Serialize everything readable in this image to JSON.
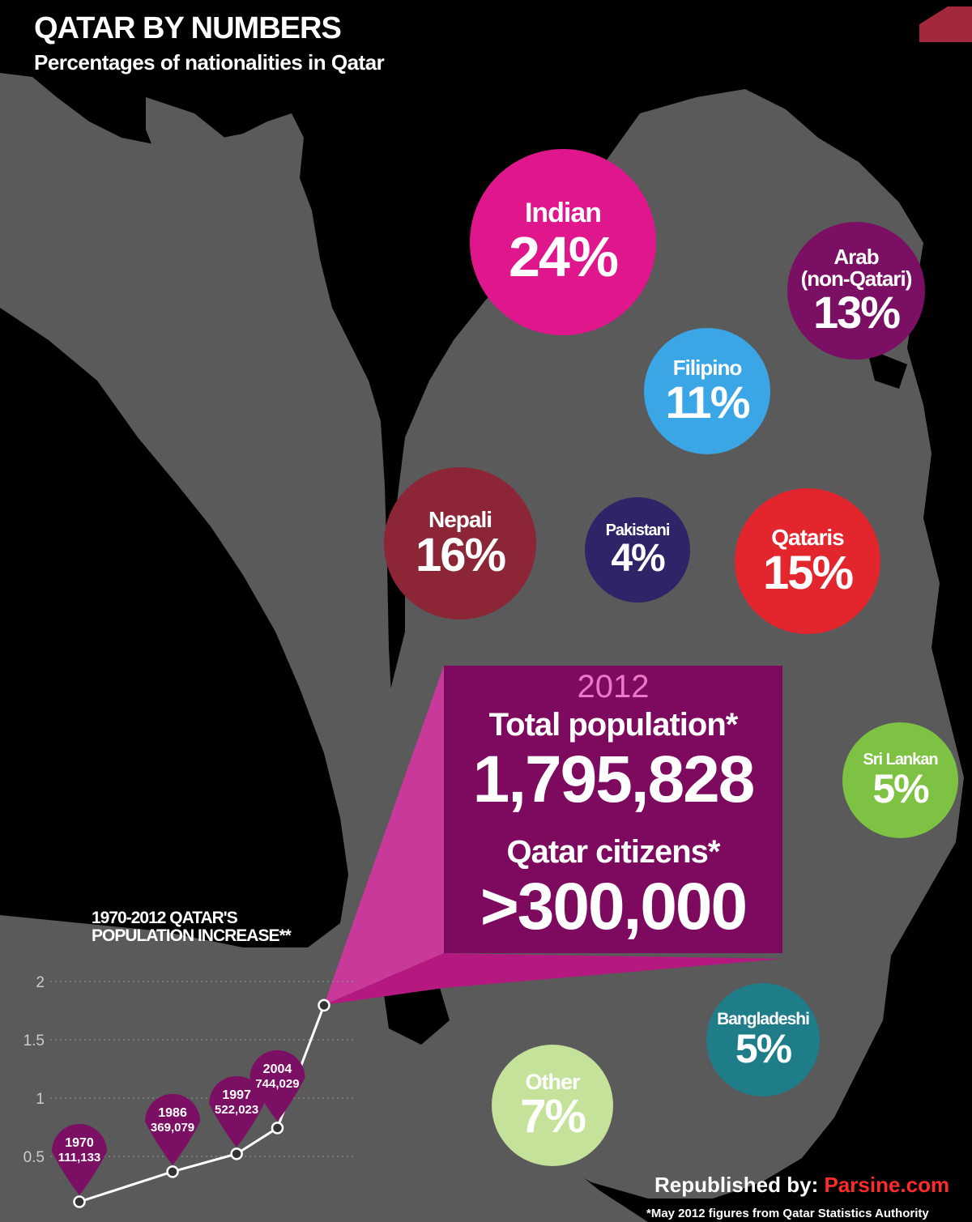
{
  "header": {
    "title": "QATAR BY NUMBERS",
    "subtitle": "Percentages of nationalities in Qatar"
  },
  "colors": {
    "background": "#000000",
    "land": "#5a5a5a",
    "indian": "#e0168c",
    "arab": "#7b0f63",
    "filipino": "#3aa6e6",
    "nepali": "#8c2536",
    "pakistani": "#2f2467",
    "qataris": "#e3262e",
    "sri_lankan": "#7dc242",
    "bangladeshi": "#1e7d89",
    "other": "#c4e29a",
    "highlight_box": "#7d0a5e",
    "highlight_year": "#e878c8",
    "brand": "#ff2a2a"
  },
  "nationalities": [
    {
      "label": "Indian",
      "percent": "24%"
    },
    {
      "label": "Arab (non-Qatari)",
      "percent": "13%"
    },
    {
      "label": "Filipino",
      "percent": "11%"
    },
    {
      "label": "Nepali",
      "percent": "16%"
    },
    {
      "label": "Pakistani",
      "percent": "4%"
    },
    {
      "label": "Qataris",
      "percent": "15%"
    },
    {
      "label": "Sri Lankan",
      "percent": "5%"
    },
    {
      "label": "Bangladeshi",
      "percent": "5%"
    },
    {
      "label": "Other",
      "percent": "7%"
    }
  ],
  "highlight": {
    "year": "2012",
    "total_label": "Total population*",
    "total_value": "1,795,828",
    "citizens_label": "Qatar citizens*",
    "citizens_value": ">300,000"
  },
  "chart_data": {
    "type": "line",
    "title": "1970-2012 QATAR'S POPULATION INCREASE**",
    "x": [
      1970,
      1986,
      1997,
      2004,
      2012
    ],
    "y": [
      0.111133,
      0.369079,
      0.522023,
      0.744029,
      1.795828
    ],
    "point_labels": [
      {
        "year": "1970",
        "value": "111,133"
      },
      {
        "year": "1986",
        "value": "369,079"
      },
      {
        "year": "1997",
        "value": "522,023"
      },
      {
        "year": "2004",
        "value": "744,029"
      }
    ],
    "yticks": [
      "0.5",
      "1",
      "1.5",
      "2"
    ],
    "ylim": [
      0,
      2
    ],
    "grid": true
  },
  "footer": {
    "credit_prefix": "Republished by: ",
    "credit_brand": "Parsine.com",
    "source_note": "*May 2012 figures from Qatar Statistics Authority"
  }
}
